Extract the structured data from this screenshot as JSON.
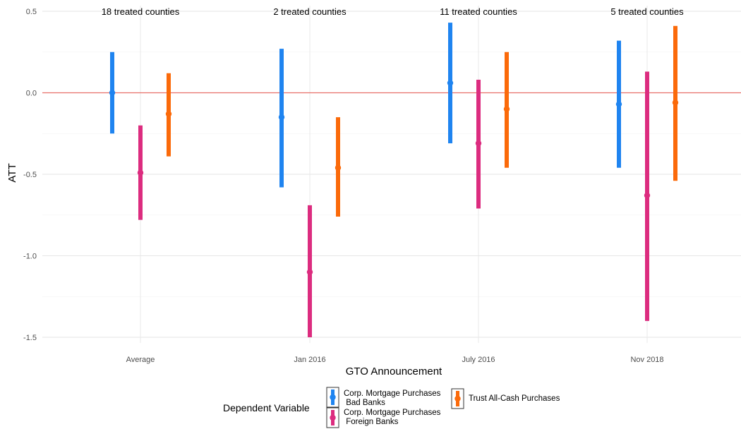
{
  "chart_data": {
    "type": "errorbar",
    "xlabel": "GTO Announcement",
    "ylabel": "ATT",
    "ylim": [
      -1.5,
      0.5
    ],
    "yticks": [
      -1.5,
      -1.0,
      -0.5,
      0.0,
      0.5
    ],
    "ytick_labels": [
      "-1.5",
      "-1.0",
      "-0.5",
      "0.0",
      "0.5"
    ],
    "reference_line": {
      "y": 0.0,
      "color": "#e8716a"
    },
    "grid": true,
    "legend_position": "bottom",
    "categories": [
      "Average",
      "Jan 2016",
      "July 2016",
      "Nov 2018"
    ],
    "annotations": [
      "18 treated counties",
      "2 treated counties",
      "11 treated counties",
      "5 treated counties"
    ],
    "legend": {
      "title": "Dependent Variable",
      "entries": [
        {
          "label_line1": "Corp. Mortgage Purchases",
          "label_line2": " Bad Banks",
          "color": "#1f84f0"
        },
        {
          "label_line1": "Corp. Mortgage Purchases",
          "label_line2": " Foreign Banks",
          "color": "#dc2c7f"
        },
        {
          "label_line1": "Trust All-Cash Purchases",
          "label_line2": "",
          "color": "#fb6a0a"
        }
      ]
    },
    "series": [
      {
        "color": "#1f84f0",
        "offset": -1,
        "estimates": [
          0.0,
          -0.15,
          0.06,
          -0.07
        ],
        "lower": [
          -0.25,
          -0.58,
          -0.31,
          -0.46
        ],
        "upper": [
          0.25,
          0.27,
          0.43,
          0.32
        ]
      },
      {
        "color": "#dc2c7f",
        "offset": 0,
        "estimates": [
          -0.49,
          -1.1,
          -0.31,
          -0.63
        ],
        "lower": [
          -0.78,
          -1.5,
          -0.71,
          -1.4
        ],
        "upper": [
          -0.2,
          -0.69,
          0.08,
          0.13
        ]
      },
      {
        "color": "#fb6a0a",
        "offset": 1,
        "estimates": [
          -0.13,
          -0.46,
          -0.1,
          -0.06
        ],
        "lower": [
          -0.39,
          -0.76,
          -0.46,
          -0.54
        ],
        "upper": [
          0.12,
          -0.15,
          0.25,
          0.41
        ]
      }
    ]
  }
}
